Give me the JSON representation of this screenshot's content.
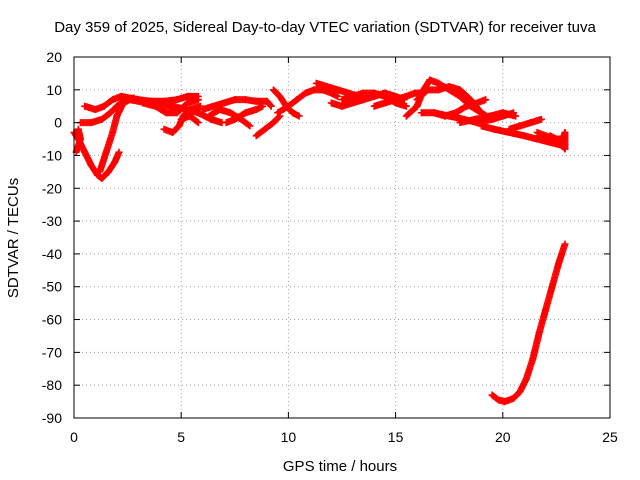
{
  "chart_data": {
    "type": "scatter",
    "title": "Day 359 of 2025, Sidereal Day-to-day VTEC variation (SDTVAR) for receiver tuva",
    "xlabel": "GPS time / hours",
    "ylabel": "SDTVAR / TECUs",
    "xlim": [
      0,
      25
    ],
    "ylim": [
      -90,
      20
    ],
    "xticks": [
      0,
      5,
      10,
      15,
      20,
      25
    ],
    "yticks": [
      20,
      10,
      0,
      -10,
      -20,
      -30,
      -40,
      -50,
      -60,
      -70,
      -80,
      -90
    ],
    "grid": true,
    "marker": "plus",
    "color": "#ff0000",
    "series": [
      {
        "name": "arc-1",
        "points": [
          [
            0,
            -3
          ],
          [
            0.2,
            -5
          ],
          [
            0.5,
            -9
          ],
          [
            0.8,
            -13
          ],
          [
            1.1,
            -16
          ],
          [
            1.3,
            -17
          ],
          [
            1.6,
            -15
          ],
          [
            1.9,
            -12
          ],
          [
            2.1,
            -9
          ]
        ]
      },
      {
        "name": "arc-2",
        "points": [
          [
            0.1,
            -9
          ],
          [
            0.3,
            -5
          ],
          [
            0.2,
            -2
          ]
        ]
      },
      {
        "name": "arc-3",
        "points": [
          [
            1.2,
            -15
          ],
          [
            1.5,
            -9
          ],
          [
            1.8,
            -3
          ],
          [
            2.0,
            2
          ],
          [
            2.3,
            6
          ],
          [
            2.6,
            7
          ],
          [
            3.0,
            6.5
          ],
          [
            3.5,
            6
          ],
          [
            4.0,
            5.5
          ],
          [
            4.6,
            5
          ],
          [
            5.2,
            4
          ],
          [
            5.8,
            3
          ],
          [
            6.4,
            1
          ],
          [
            6.9,
            0
          ]
        ]
      },
      {
        "name": "arc-4",
        "points": [
          [
            0.5,
            5
          ],
          [
            1.0,
            4
          ],
          [
            1.4,
            5
          ],
          [
            1.8,
            7
          ],
          [
            2.2,
            8
          ],
          [
            2.6,
            7.5
          ],
          [
            3.0,
            7
          ],
          [
            3.6,
            6.5
          ],
          [
            4.2,
            6.5
          ],
          [
            4.8,
            7
          ],
          [
            5.3,
            8
          ],
          [
            5.8,
            8
          ]
        ]
      },
      {
        "name": "arc-5",
        "points": [
          [
            0.3,
            0
          ],
          [
            0.8,
            0
          ],
          [
            1.3,
            1
          ],
          [
            1.7,
            3
          ],
          [
            2.0,
            5
          ],
          [
            2.4,
            7
          ],
          [
            2.8,
            7.5
          ]
        ]
      },
      {
        "name": "arc-6",
        "points": [
          [
            3.2,
            6
          ],
          [
            3.8,
            5
          ],
          [
            4.3,
            3
          ],
          [
            4.8,
            3
          ],
          [
            5.3,
            6
          ],
          [
            5.8,
            7
          ]
        ]
      },
      {
        "name": "arc-7",
        "points": [
          [
            4.2,
            -2
          ],
          [
            4.6,
            -3
          ],
          [
            4.9,
            -1
          ],
          [
            5.1,
            2
          ],
          [
            5.4,
            4
          ],
          [
            5.9,
            5
          ]
        ]
      },
      {
        "name": "arc-8",
        "points": [
          [
            5.0,
            1
          ],
          [
            5.4,
            2
          ],
          [
            5.8,
            0
          ]
        ]
      },
      {
        "name": "arc-9",
        "points": [
          [
            6.0,
            4
          ],
          [
            6.5,
            5
          ],
          [
            7.0,
            6
          ],
          [
            7.5,
            7
          ],
          [
            8.0,
            7
          ],
          [
            8.5,
            6.5
          ],
          [
            9.0,
            6.5
          ],
          [
            9.2,
            5
          ]
        ]
      },
      {
        "name": "arc-10",
        "points": [
          [
            6.3,
            2
          ],
          [
            6.8,
            4
          ],
          [
            7.3,
            3
          ],
          [
            7.8,
            1
          ],
          [
            8.2,
            -1
          ]
        ]
      },
      {
        "name": "arc-11",
        "points": [
          [
            7.1,
            0
          ],
          [
            7.5,
            1
          ],
          [
            8.0,
            3
          ],
          [
            8.5,
            4
          ],
          [
            8.8,
            5
          ]
        ]
      },
      {
        "name": "arc-12",
        "points": [
          [
            8.5,
            -4
          ],
          [
            8.9,
            -2
          ],
          [
            9.3,
            0
          ],
          [
            9.6,
            2
          ]
        ]
      },
      {
        "name": "arc-13",
        "points": [
          [
            9.3,
            10
          ],
          [
            9.6,
            8
          ],
          [
            9.9,
            5
          ],
          [
            10.2,
            3
          ],
          [
            10.5,
            2
          ]
        ]
      },
      {
        "name": "arc-14",
        "points": [
          [
            9.5,
            3
          ],
          [
            10.0,
            5
          ],
          [
            10.4,
            7
          ],
          [
            10.8,
            9
          ],
          [
            11.2,
            10
          ],
          [
            11.6,
            10
          ],
          [
            12.0,
            9
          ],
          [
            12.3,
            8
          ]
        ]
      },
      {
        "name": "arc-15",
        "points": [
          [
            11.3,
            12
          ],
          [
            11.8,
            11
          ],
          [
            12.3,
            10
          ],
          [
            12.8,
            9
          ],
          [
            13.3,
            8
          ]
        ]
      },
      {
        "name": "arc-16",
        "points": [
          [
            12.0,
            6
          ],
          [
            12.5,
            5
          ],
          [
            13.0,
            6
          ],
          [
            13.5,
            7
          ],
          [
            14.0,
            8
          ],
          [
            14.5,
            9
          ],
          [
            15.0,
            8
          ],
          [
            15.4,
            7
          ]
        ]
      },
      {
        "name": "arc-17",
        "points": [
          [
            12.5,
            7
          ],
          [
            13.0,
            8
          ],
          [
            13.5,
            9
          ],
          [
            14.0,
            9
          ],
          [
            14.5,
            8
          ],
          [
            15.0,
            6
          ],
          [
            15.5,
            5
          ]
        ]
      },
      {
        "name": "arc-18",
        "points": [
          [
            14.0,
            5
          ],
          [
            14.5,
            6
          ],
          [
            15.0,
            7
          ],
          [
            15.5,
            8
          ],
          [
            15.9,
            9
          ],
          [
            16.2,
            9
          ]
        ]
      },
      {
        "name": "arc-19",
        "points": [
          [
            15.5,
            2
          ],
          [
            16.0,
            5
          ],
          [
            16.3,
            10
          ],
          [
            16.6,
            13
          ],
          [
            17.0,
            12
          ],
          [
            17.5,
            10
          ],
          [
            18.0,
            8
          ],
          [
            18.5,
            5
          ],
          [
            19.0,
            3
          ]
        ]
      },
      {
        "name": "arc-20",
        "points": [
          [
            16.0,
            7
          ],
          [
            16.5,
            10
          ],
          [
            17.0,
            10
          ],
          [
            17.5,
            11
          ],
          [
            18.0,
            10
          ],
          [
            18.5,
            7
          ],
          [
            19.0,
            3
          ],
          [
            19.5,
            1
          ]
        ]
      },
      {
        "name": "arc-21",
        "points": [
          [
            16.2,
            3
          ],
          [
            16.8,
            3
          ],
          [
            17.3,
            2
          ],
          [
            17.8,
            3
          ],
          [
            18.3,
            5
          ],
          [
            18.8,
            6
          ],
          [
            19.2,
            7
          ]
        ]
      },
      {
        "name": "arc-22",
        "points": [
          [
            16.8,
            3
          ],
          [
            17.5,
            2
          ],
          [
            18.2,
            1
          ],
          [
            18.8,
            0
          ],
          [
            19.5,
            1
          ],
          [
            20.0,
            2
          ],
          [
            20.5,
            3
          ]
        ]
      },
      {
        "name": "arc-23",
        "points": [
          [
            18.0,
            0
          ],
          [
            18.7,
            1
          ],
          [
            19.4,
            2
          ],
          [
            20.0,
            3
          ],
          [
            20.6,
            2
          ]
        ]
      },
      {
        "name": "arc-24",
        "points": [
          [
            19.0,
            -1
          ],
          [
            19.6,
            -2
          ],
          [
            20.3,
            -3
          ],
          [
            21.0,
            -4
          ],
          [
            21.6,
            -5
          ],
          [
            22.2,
            -6
          ],
          [
            22.8,
            -7
          ]
        ]
      },
      {
        "name": "arc-25",
        "points": [
          [
            20.3,
            -2
          ],
          [
            20.8,
            -1
          ],
          [
            21.3,
            0
          ],
          [
            21.8,
            1
          ]
        ]
      },
      {
        "name": "arc-26",
        "points": [
          [
            21.6,
            -3
          ],
          [
            22.0,
            -4
          ],
          [
            22.4,
            -5
          ],
          [
            22.8,
            -5
          ],
          [
            22.9,
            -3
          ],
          [
            22.9,
            -8
          ],
          [
            22.5,
            -5
          ],
          [
            22.2,
            -4
          ]
        ]
      },
      {
        "name": "arc-27",
        "points": [
          [
            19.5,
            -83
          ],
          [
            19.8,
            -84.5
          ],
          [
            20.1,
            -85
          ],
          [
            20.5,
            -84
          ],
          [
            20.8,
            -82
          ],
          [
            21.1,
            -78
          ],
          [
            21.4,
            -72
          ],
          [
            21.7,
            -64
          ],
          [
            22.0,
            -57
          ],
          [
            22.3,
            -50
          ],
          [
            22.6,
            -43
          ],
          [
            22.9,
            -37
          ]
        ]
      }
    ]
  }
}
